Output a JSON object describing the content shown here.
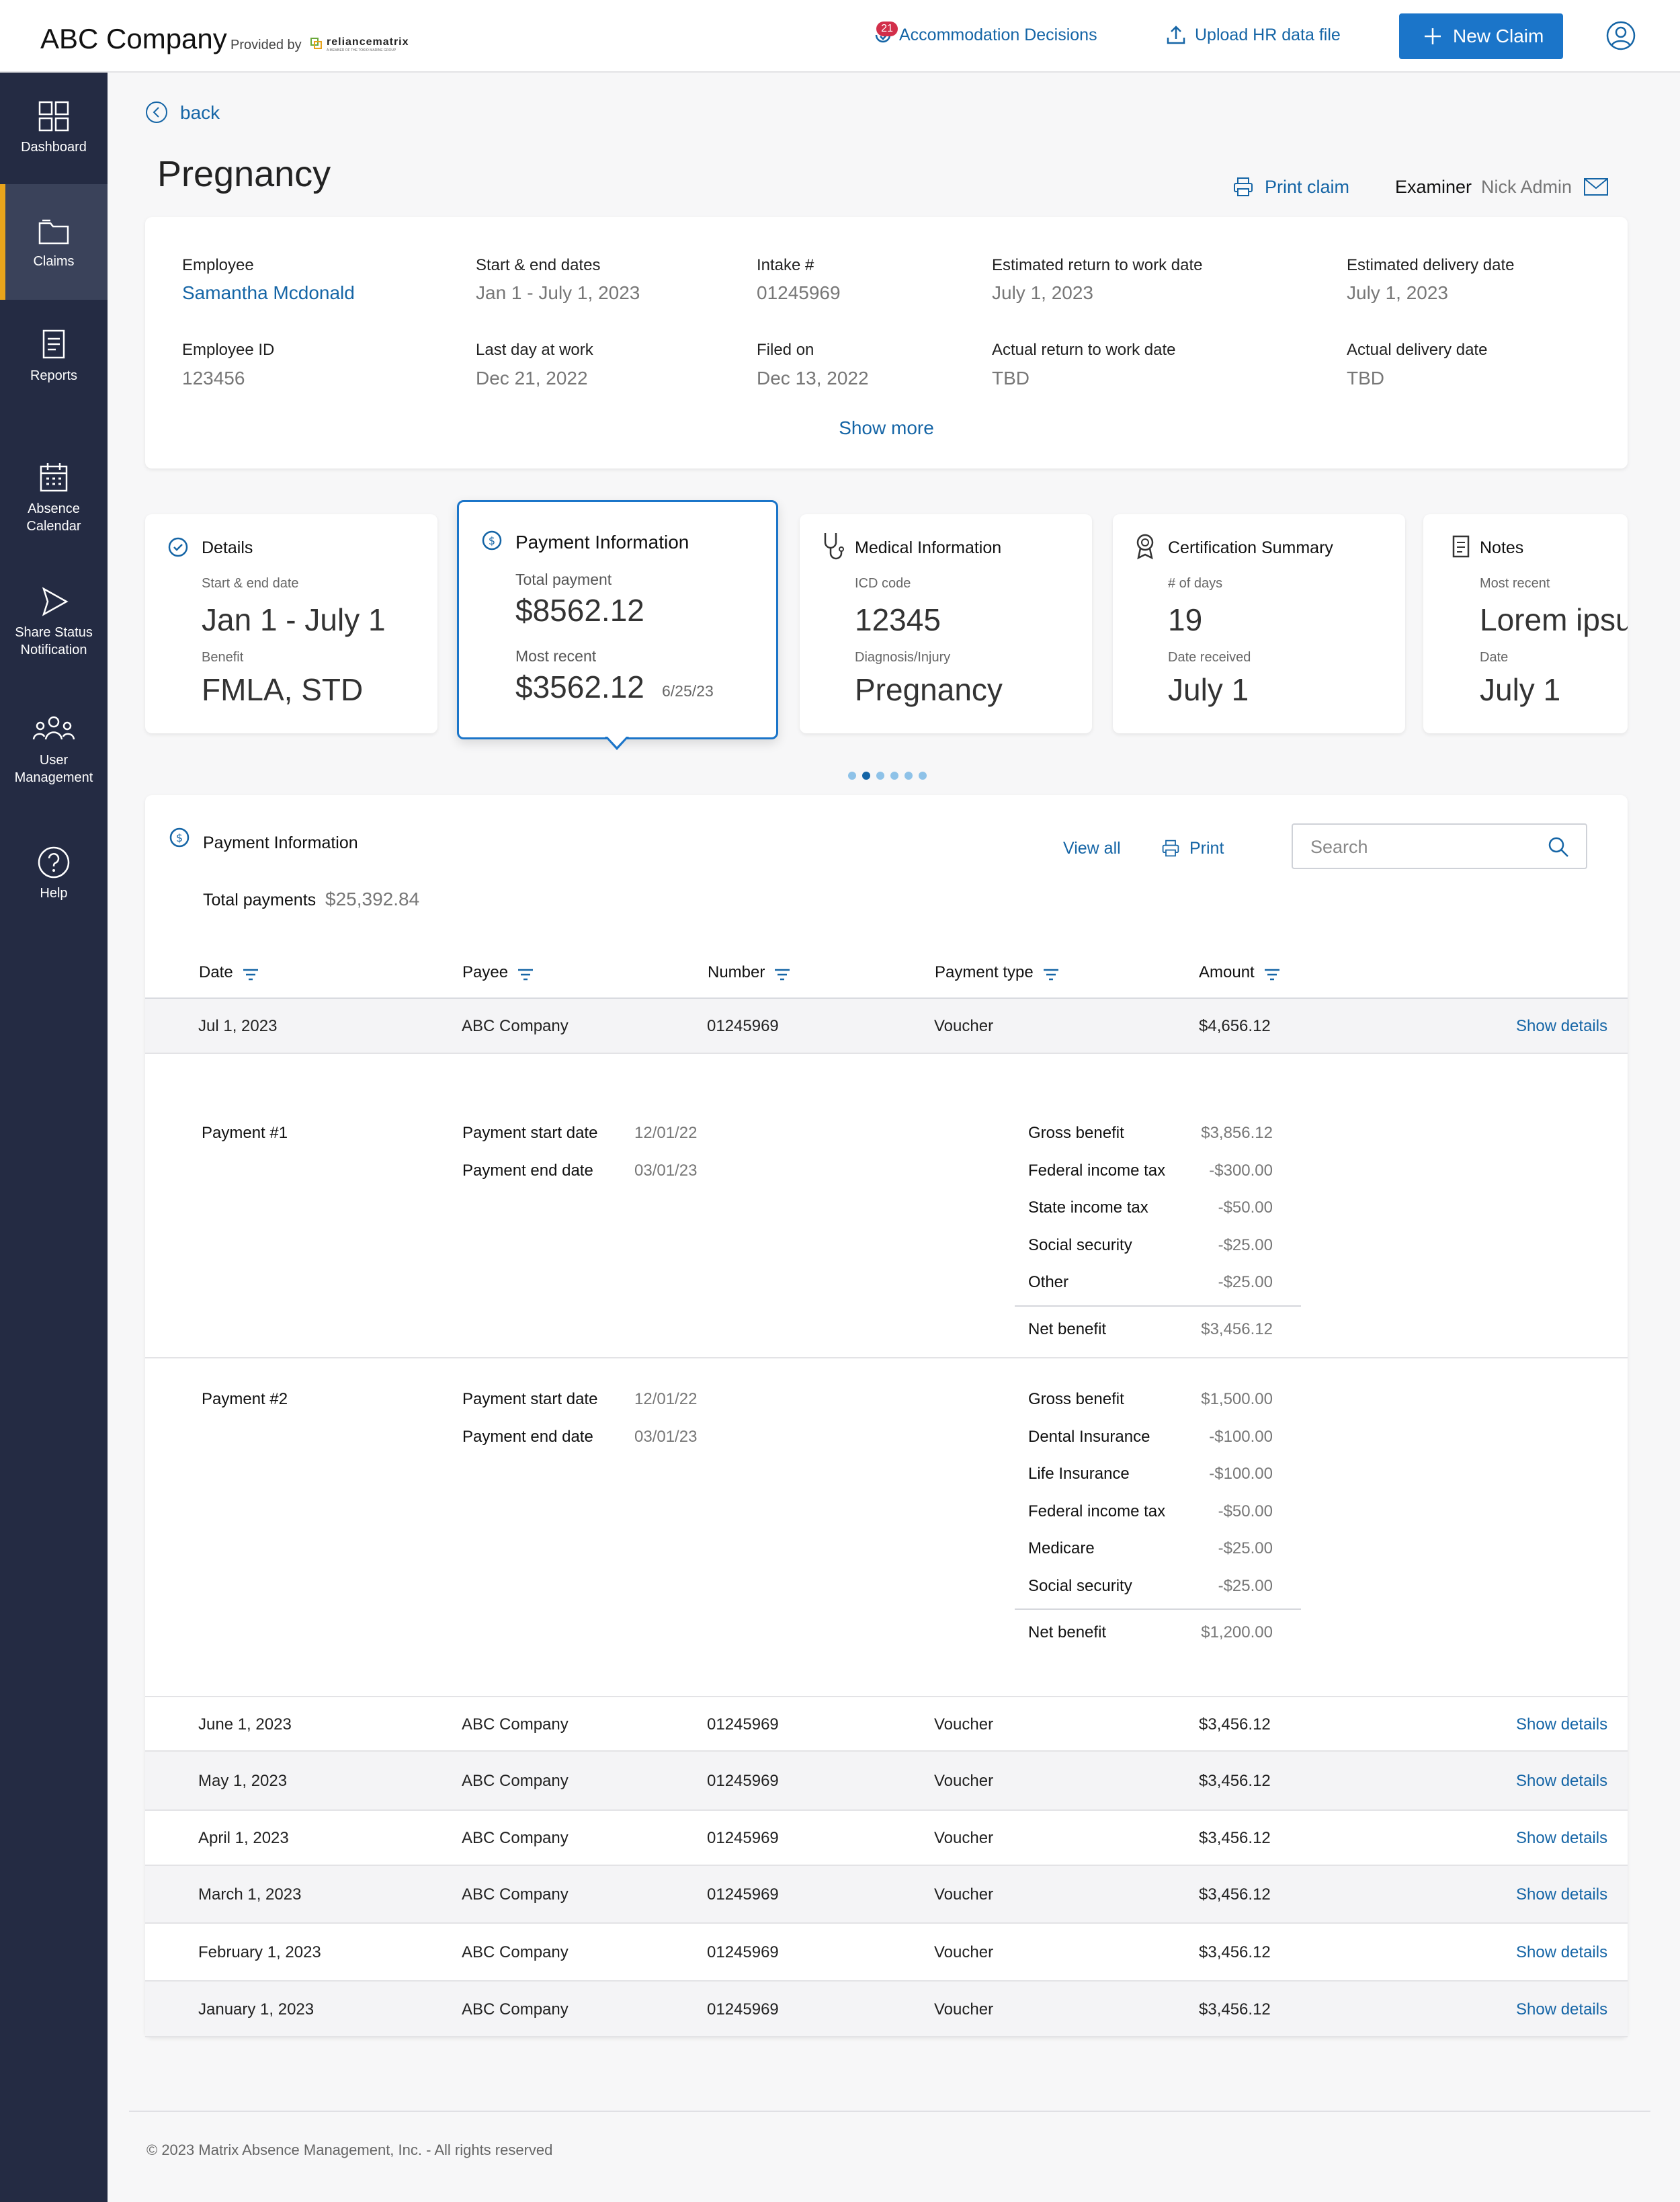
{
  "header": {
    "company": "ABC Company",
    "provided_by": "Provided by",
    "brand": "reliancematrix",
    "brand_sub": "A MEMBER OF THE TOKIO MARINE GROUP",
    "accommodation_badge": "21",
    "accommodation": "Accommodation Decisions",
    "upload": "Upload HR data file",
    "new_claim": "New Claim"
  },
  "sidebar": {
    "items": [
      {
        "label": "Dashboard"
      },
      {
        "label": "Claims"
      },
      {
        "label": "Reports"
      },
      {
        "label": "Absence Calendar"
      },
      {
        "label": "Share Status Notification"
      },
      {
        "label": "User Management"
      },
      {
        "label": "Help"
      }
    ]
  },
  "back": "back",
  "page_title": "Pregnancy",
  "print_claim": "Print claim",
  "examiner_label": "Examiner",
  "examiner_name": "Nick Admin",
  "summary": {
    "employee_label": "Employee",
    "employee_value": "Samantha Mcdonald",
    "dates_label": "Start & end dates",
    "dates_value": "Jan 1 - July 1, 2023",
    "intake_label": "Intake #",
    "intake_value": "01245969",
    "est_return_label": "Estimated return to work date",
    "est_return_value": "July 1, 2023",
    "est_delivery_label": "Estimated delivery date",
    "est_delivery_value": "July 1, 2023",
    "empid_label": "Employee ID",
    "empid_value": "123456",
    "lastday_label": "Last day at work",
    "lastday_value": "Dec 21, 2022",
    "filed_label": "Filed on",
    "filed_value": "Dec 13, 2022",
    "act_return_label": "Actual return to work date",
    "act_return_value": "TBD",
    "act_delivery_label": "Actual delivery date",
    "act_delivery_value": "TBD",
    "show_more": "Show more"
  },
  "cards": {
    "details": {
      "title": "Details",
      "l1": "Start & end date",
      "v1": "Jan 1 - July 1",
      "l2": "Benefit",
      "v2": "FMLA, STD"
    },
    "payment": {
      "title": "Payment Information",
      "l1": "Total payment",
      "v1": "$8562.12",
      "l2": "Most recent",
      "v2": "$3562.12",
      "v2_date": "6/25/23"
    },
    "medical": {
      "title": "Medical Information",
      "l1": "ICD code",
      "v1": "12345",
      "l2": "Diagnosis/Injury",
      "v2": "Pregnancy"
    },
    "cert": {
      "title": "Certification Summary",
      "l1": "# of days",
      "v1": "19",
      "l2": "Date received",
      "v2": "July 1"
    },
    "notes": {
      "title": "Notes",
      "l1": "Most recent",
      "v1": "Lorem ipsum",
      "l2": "Date",
      "v2": "July 1"
    }
  },
  "carousel": {
    "active_dot": 1,
    "count": 6
  },
  "payments": {
    "title": "Payment Information",
    "view_all": "View all",
    "print": "Print",
    "search_placeholder": "Search",
    "total_label": "Total payments",
    "total_value": "$25,392.84",
    "columns": [
      "Date",
      "Payee",
      "Number",
      "Payment type",
      "Amount"
    ],
    "show_details": "Show details",
    "first_row": {
      "date": "Jul 1, 2023",
      "payee": "ABC Company",
      "number": "01245969",
      "type": "Voucher",
      "amount": "$4,656.12"
    },
    "detail": [
      {
        "title": "Payment #1",
        "start_label": "Payment start date",
        "start_value": "12/01/22",
        "end_label": "Payment end date",
        "end_value": "03/01/23",
        "lines": [
          [
            "Gross benefit",
            "$3,856.12"
          ],
          [
            "Federal income tax",
            "-$300.00"
          ],
          [
            "State income tax",
            "-$50.00"
          ],
          [
            "Social security",
            "-$25.00"
          ],
          [
            "Other",
            "-$25.00"
          ]
        ],
        "net_label": "Net benefit",
        "net_value": "$3,456.12"
      },
      {
        "title": "Payment #2",
        "start_label": "Payment start date",
        "start_value": "12/01/22",
        "end_label": "Payment end date",
        "end_value": "03/01/23",
        "lines": [
          [
            "Gross benefit",
            "$1,500.00"
          ],
          [
            "Dental Insurance",
            "-$100.00"
          ],
          [
            "Life Insurance",
            "-$100.00"
          ],
          [
            "Federal income tax",
            "-$50.00"
          ],
          [
            "Medicare",
            "-$25.00"
          ],
          [
            "Social security",
            "-$25.00"
          ]
        ],
        "net_label": "Net benefit",
        "net_value": "$1,200.00"
      }
    ],
    "rows": [
      {
        "date": "June 1, 2023",
        "payee": "ABC Company",
        "number": "01245969",
        "type": "Voucher",
        "amount": "$3,456.12"
      },
      {
        "date": "May 1, 2023",
        "payee": "ABC Company",
        "number": "01245969",
        "type": "Voucher",
        "amount": "$3,456.12"
      },
      {
        "date": "April 1, 2023",
        "payee": "ABC Company",
        "number": "01245969",
        "type": "Voucher",
        "amount": "$3,456.12"
      },
      {
        "date": "March 1, 2023",
        "payee": "ABC Company",
        "number": "01245969",
        "type": "Voucher",
        "amount": "$3,456.12"
      },
      {
        "date": "February 1, 2023",
        "payee": "ABC Company",
        "number": "01245969",
        "type": "Voucher",
        "amount": "$3,456.12"
      },
      {
        "date": "January 1, 2023",
        "payee": "ABC Company",
        "number": "01245969",
        "type": "Voucher",
        "amount": "$3,456.12"
      }
    ]
  },
  "footer": "© 2023 Matrix Absence Management, Inc. - All rights reserved",
  "colors": {
    "sidebar": "#242b43",
    "accent": "#1565a6",
    "active_marker": "#e8a41c",
    "button": "#1b75c9"
  }
}
